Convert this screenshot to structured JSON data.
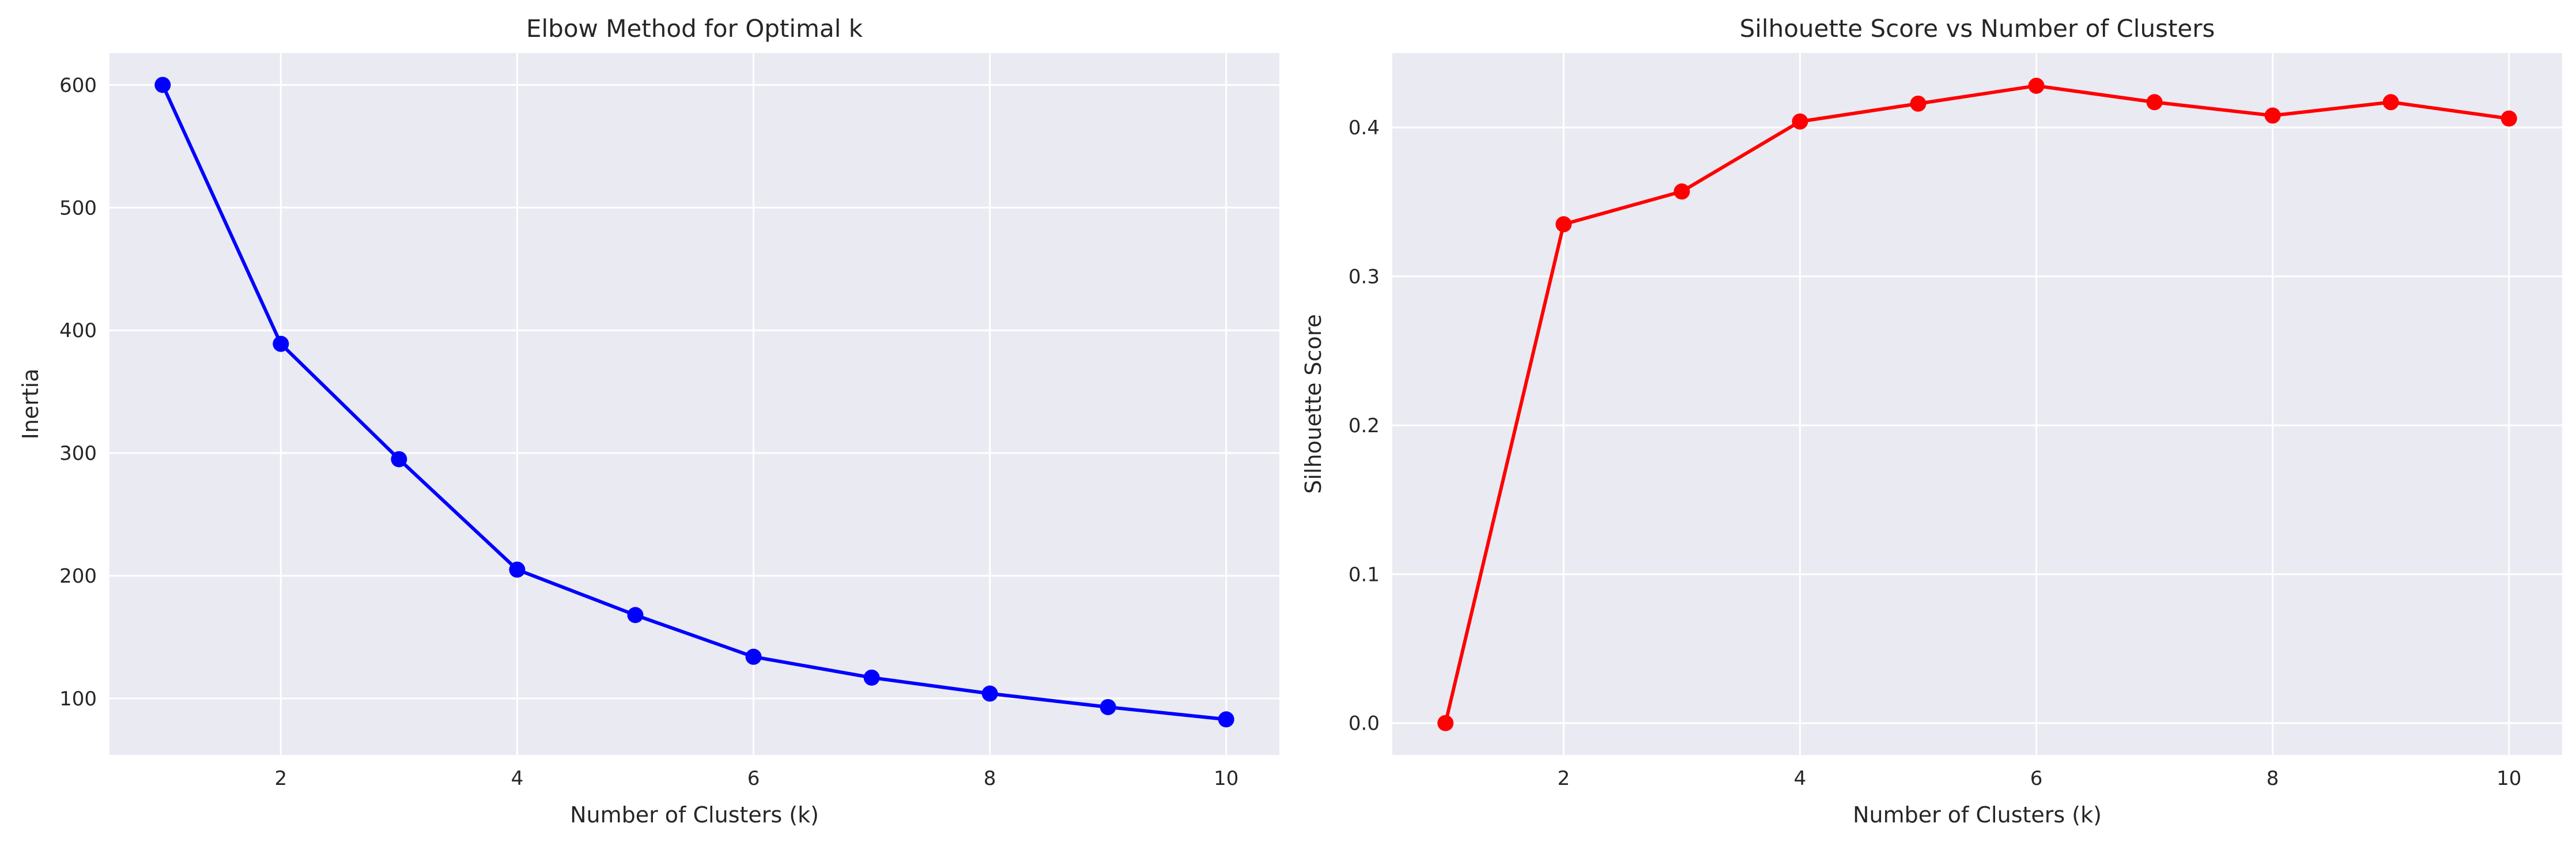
{
  "chart_data": [
    {
      "type": "line",
      "title": "Elbow Method for Optimal k",
      "xlabel": "Number of Clusters (k)",
      "ylabel": "Inertia",
      "x": [
        1,
        2,
        3,
        4,
        5,
        6,
        7,
        8,
        9,
        10
      ],
      "xlim": [
        0.55,
        10.45
      ],
      "ylim": [
        54,
        626
      ],
      "xticks": [
        2,
        4,
        6,
        8,
        10
      ],
      "yticks": [
        100,
        200,
        300,
        400,
        500,
        600
      ],
      "grid": true,
      "series": [
        {
          "values": [
            600,
            389,
            295,
            205,
            168,
            134,
            117,
            104,
            93,
            83
          ],
          "color": "#0000FF",
          "marker": "circle"
        }
      ]
    },
    {
      "type": "line",
      "title": "Silhouette Score vs Number of Clusters",
      "xlabel": "Number of Clusters (k)",
      "ylabel": "Silhouette Score",
      "x": [
        1,
        2,
        3,
        4,
        5,
        6,
        7,
        8,
        9,
        10
      ],
      "xlim": [
        0.55,
        10.45
      ],
      "ylim": [
        -0.0214,
        0.45
      ],
      "xticks": [
        2,
        4,
        6,
        8,
        10
      ],
      "yticks": [
        0.0,
        0.1,
        0.2,
        0.3,
        0.4
      ],
      "ytick_labels": [
        "0.0",
        "0.1",
        "0.2",
        "0.3",
        "0.4"
      ],
      "grid": true,
      "series": [
        {
          "values": [
            0.0,
            0.335,
            0.357,
            0.404,
            0.416,
            0.428,
            0.417,
            0.408,
            0.417,
            0.406
          ],
          "color": "#FF0000",
          "marker": "circle"
        }
      ]
    }
  ]
}
